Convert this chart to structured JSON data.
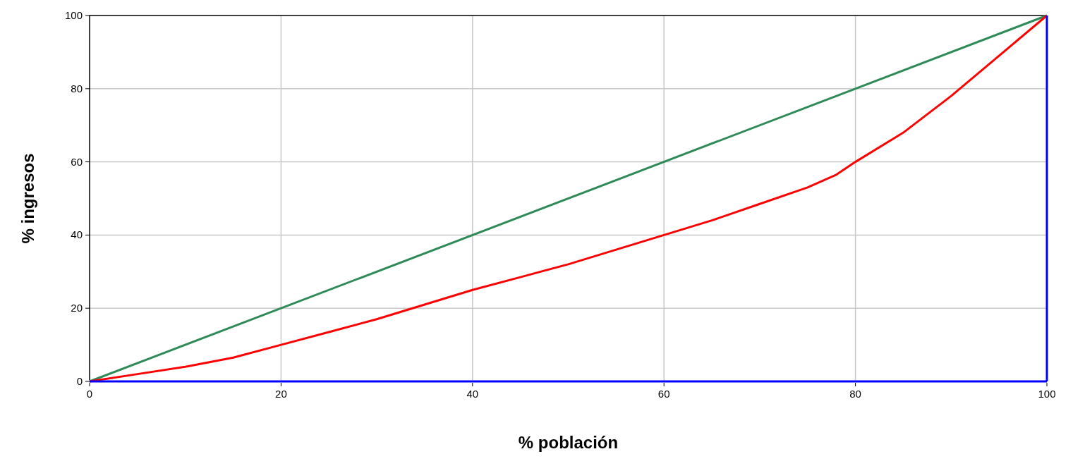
{
  "chart_data": {
    "type": "line",
    "xlabel": "% población",
    "ylabel": "% ingresos",
    "xlim": [
      0,
      100
    ],
    "ylim": [
      0,
      100
    ],
    "xticks": [
      0,
      20,
      40,
      60,
      80,
      100
    ],
    "yticks": [
      0,
      20,
      40,
      60,
      80,
      100
    ],
    "grid": true,
    "marker": "none",
    "line_style": "solid",
    "series": [
      {
        "color": "#2e8b57",
        "x": [
          0,
          100
        ],
        "values": [
          0,
          100
        ]
      },
      {
        "color": "#ff0000",
        "x": [
          0,
          5,
          10,
          15,
          20,
          25,
          30,
          35,
          40,
          45,
          50,
          55,
          60,
          65,
          70,
          75,
          78,
          80,
          85,
          90,
          95,
          100
        ],
        "values": [
          0,
          2,
          4,
          6.5,
          10,
          13.5,
          17,
          21,
          25,
          28.5,
          32,
          36,
          40,
          44,
          48.5,
          53,
          56.5,
          60,
          68,
          78,
          89,
          100
        ]
      },
      {
        "color": "#0000ff",
        "x": [
          0,
          100
        ],
        "values": [
          0,
          0
        ]
      }
    ],
    "ref_lines": [
      {
        "axis": "x",
        "value": 100,
        "color": "#0000ff"
      }
    ]
  }
}
